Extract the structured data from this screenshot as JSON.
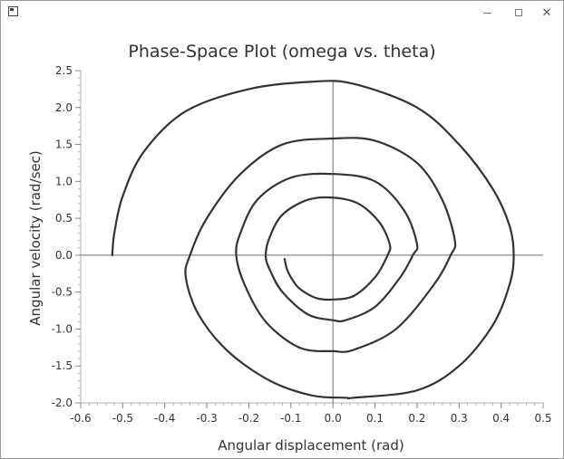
{
  "window": {
    "minimize_symbol": "–",
    "close_symbol": "✕"
  },
  "chart_data": {
    "type": "line",
    "title": "Phase-Space Plot (omega vs. theta)",
    "xlabel": "Angular displacement (rad)",
    "ylabel": "Angular velocity (rad/sec)",
    "xlim": [
      -0.6,
      0.5
    ],
    "ylim": [
      -2.0,
      2.5
    ],
    "xticks": [
      -0.6,
      -0.5,
      -0.4,
      -0.3,
      -0.2,
      -0.1,
      0.0,
      0.1,
      0.2,
      0.3,
      0.4,
      0.5
    ],
    "yticks": [
      -2.0,
      -1.5,
      -1.0,
      -0.5,
      0.0,
      0.5,
      1.0,
      1.5,
      2.0,
      2.5
    ],
    "xtick_labels": [
      "-0.6",
      "-0.5",
      "-0.4",
      "-0.3",
      "-0.2",
      "-0.1",
      "0.0",
      "0.1",
      "0.2",
      "0.3",
      "0.4",
      "0.5"
    ],
    "ytick_labels": [
      "-2.0",
      "-1.5",
      "-1.0",
      "-0.5",
      "0.0",
      "0.5",
      "1.0",
      "1.5",
      "2.0",
      "2.5"
    ],
    "grid": false,
    "zero_lines": true,
    "line_color": "#333333",
    "series": [
      {
        "x": [
          -0.525,
          -0.52,
          -0.5,
          -0.45,
          -0.35,
          -0.2,
          -0.05,
          0.05,
          0.2,
          0.3,
          0.38,
          0.42,
          0.43,
          0.42,
          0.38,
          0.3,
          0.2,
          0.05,
          0.03,
          -0.05,
          -0.15,
          -0.25,
          -0.32,
          -0.35,
          -0.34,
          -0.3,
          -0.22,
          -0.12,
          0.0,
          0.1,
          0.2,
          0.26,
          0.29,
          0.28,
          0.24,
          0.15,
          0.05,
          0.0,
          -0.08,
          -0.16,
          -0.21,
          -0.23,
          -0.22,
          -0.18,
          -0.1,
          0.0,
          0.1,
          0.17,
          0.2,
          0.19,
          0.16,
          0.1,
          0.03,
          0.0,
          -0.06,
          -0.12,
          -0.15,
          -0.16,
          -0.15,
          -0.12,
          -0.06,
          0.0,
          0.06,
          0.11,
          0.135,
          0.13,
          0.1,
          0.05,
          0.0,
          -0.04,
          -0.08,
          -0.1,
          -0.11,
          -0.115
        ],
        "y": [
          0.0,
          0.3,
          0.8,
          1.4,
          1.95,
          2.25,
          2.35,
          2.32,
          2.0,
          1.5,
          0.9,
          0.4,
          0.0,
          -0.4,
          -0.95,
          -1.5,
          -1.83,
          -1.93,
          -1.93,
          -1.9,
          -1.7,
          -1.3,
          -0.8,
          -0.3,
          0.0,
          0.5,
          1.1,
          1.5,
          1.58,
          1.55,
          1.25,
          0.75,
          0.2,
          0.0,
          -0.4,
          -1.0,
          -1.28,
          -1.3,
          -1.25,
          -0.9,
          -0.4,
          0.0,
          0.3,
          0.75,
          1.05,
          1.1,
          1.0,
          0.6,
          0.15,
          0.0,
          -0.3,
          -0.7,
          -0.88,
          -0.88,
          -0.8,
          -0.5,
          -0.2,
          0.0,
          0.25,
          0.55,
          0.75,
          0.78,
          0.7,
          0.45,
          0.15,
          0.0,
          -0.3,
          -0.55,
          -0.6,
          -0.58,
          -0.45,
          -0.3,
          -0.18,
          -0.05
        ]
      }
    ]
  }
}
